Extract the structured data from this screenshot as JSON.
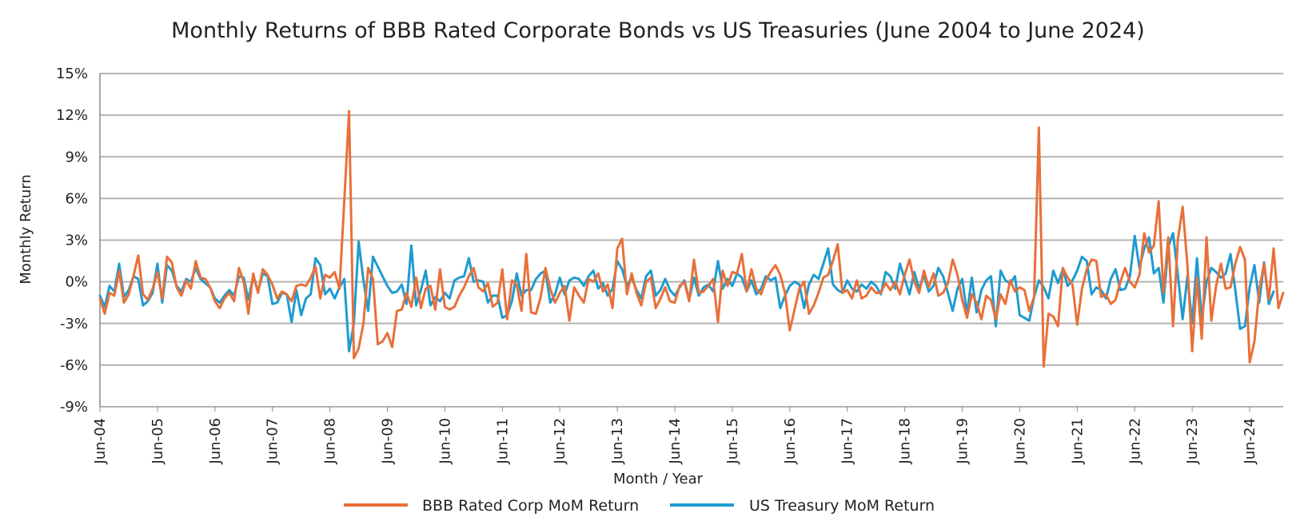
{
  "chart_data": {
    "type": "line",
    "title": "Monthly Returns of BBB Rated Corporate Bonds vs US Treasuries (June 2004 to June 2024)",
    "xlabel": "Month / Year",
    "ylabel": "Monthly Return",
    "ylim": [
      -9,
      15
    ],
    "y_ticks": [
      -9,
      -6,
      -3,
      0,
      3,
      6,
      9,
      12,
      15
    ],
    "y_tick_labels": [
      "-9%",
      "-6%",
      "-3%",
      "0%",
      "3%",
      "6%",
      "9%",
      "12%",
      "15%"
    ],
    "x_tick_labels": [
      "Jun-04",
      "Jun-05",
      "Jun-06",
      "Jun-07",
      "Jun-08",
      "Jun-09",
      "Jun-10",
      "Jun-11",
      "Jun-12",
      "Jun-13",
      "Jun-14",
      "Jun-15",
      "Jun-16",
      "Jun-17",
      "Jun-18",
      "Jun-19",
      "Jun-20",
      "Jun-21",
      "Jun-22",
      "Jun-23",
      "Jun-24"
    ],
    "grid": true,
    "legend_position": "bottom",
    "colors": {
      "bbb": "#e8703a",
      "treasury": "#1f9bd0",
      "grid": "#b3b3b3",
      "axis": "#888888"
    },
    "series": [
      {
        "name": "BBB Rated Corp MoM Return",
        "key": "bbb",
        "values": [
          -1.2,
          -2.3,
          -0.8,
          -1.0,
          0.8,
          -1.5,
          -0.9,
          0.4,
          1.9,
          -0.9,
          -1.3,
          -0.5,
          0.7,
          -1.2,
          1.8,
          1.4,
          -0.4,
          -1.0,
          0.1,
          -0.5,
          1.5,
          0.3,
          0.2,
          -0.4,
          -1.4,
          -1.9,
          -1.2,
          -0.8,
          -1.4,
          1.0,
          0.0,
          -2.3,
          0.6,
          -0.8,
          0.9,
          0.5,
          -0.2,
          -1.2,
          -0.7,
          -0.9,
          -1.4,
          -0.3,
          -0.2,
          -0.3,
          0.3,
          1.1,
          -1.2,
          0.5,
          0.3,
          0.7,
          -0.5,
          5.8,
          12.3,
          -5.5,
          -4.8,
          -3.0,
          1.0,
          0.2,
          -4.5,
          -4.3,
          -3.7,
          -4.7,
          -2.1,
          -2.0,
          -0.8,
          -1.8,
          0.3,
          -1.9,
          -0.5,
          -0.3,
          -2.0,
          0.9,
          -1.8,
          -2.0,
          -1.8,
          -1.0,
          -0.4,
          0.4,
          1.0,
          -0.4,
          -0.7,
          -0.1,
          -1.8,
          -1.5,
          0.9,
          -2.7,
          0.1,
          -0.2,
          -2.1,
          2.0,
          -2.2,
          -2.3,
          -1.1,
          1.0,
          -0.5,
          -1.5,
          -0.8,
          -0.3,
          -2.8,
          -0.4,
          -1.0,
          -1.5,
          0.2,
          0.0,
          0.6,
          -0.7,
          -0.2,
          -1.9,
          2.4,
          3.1,
          -0.9,
          0.6,
          -0.8,
          -1.7,
          0.0,
          0.3,
          -1.9,
          -1.2,
          -0.4,
          -1.4,
          -1.5,
          -0.3,
          0.0,
          -1.4,
          1.6,
          -0.8,
          -0.7,
          -0.3,
          0.2,
          -2.9,
          0.8,
          -0.3,
          0.7,
          0.6,
          2.0,
          -0.7,
          0.9,
          -0.5,
          -0.9,
          0.1,
          0.7,
          1.2,
          0.5,
          -0.8,
          -3.5,
          -2.0,
          -0.5,
          0.0,
          -2.3,
          -1.7,
          -0.8,
          0.3,
          0.5,
          1.5,
          2.7,
          -0.8,
          -0.6,
          -1.2,
          0.1,
          -1.2,
          -1.0,
          -0.4,
          -0.8,
          -0.8,
          -0.1,
          -0.6,
          0.0,
          -0.9,
          0.5,
          1.6,
          0.0,
          -0.8,
          0.8,
          -0.4,
          0.6,
          -1.0,
          -0.8,
          -0.1,
          1.6,
          0.5,
          -1.3,
          -2.6,
          -0.9,
          -1.5,
          -2.7,
          -1.0,
          -1.3,
          -2.7,
          -0.9,
          -1.6,
          0.1,
          -0.7,
          -0.4,
          -0.6,
          -2.1,
          -1.1,
          11.1,
          -6.1,
          -2.3,
          -2.5,
          -3.2,
          1.0,
          0.3,
          -0.2,
          -3.1,
          -0.5,
          0.9,
          1.6,
          1.5,
          -1.1,
          -0.9,
          -1.6,
          -1.3,
          0.0,
          1.0,
          0.0,
          -0.4,
          0.5,
          3.5,
          2.1,
          2.6,
          5.8,
          -0.8,
          3.2,
          -3.2,
          3.0,
          5.4,
          1.2,
          -5.0,
          0.3,
          -4.1,
          3.2,
          -2.8,
          -0.3,
          1.3,
          -0.5,
          -0.4,
          1.3,
          2.5,
          1.6,
          -5.8,
          -4.3,
          -0.6,
          1.3,
          -1.3,
          2.4,
          -1.9,
          -0.8
        ]
      },
      {
        "name": "US Treasury MoM Return",
        "key": "treasury",
        "values": [
          -1.0,
          -1.8,
          -0.3,
          -0.7,
          1.3,
          -1.1,
          -0.6,
          0.4,
          0.2,
          -1.7,
          -1.4,
          -0.8,
          1.3,
          -1.5,
          1.2,
          0.8,
          -0.3,
          -0.7,
          0.2,
          0.0,
          1.0,
          0.2,
          -0.1,
          -0.4,
          -1.2,
          -1.5,
          -1.0,
          -0.6,
          -1.0,
          0.4,
          0.3,
          -1.3,
          0.4,
          -0.7,
          0.6,
          0.4,
          -1.6,
          -1.5,
          -0.8,
          -0.9,
          -2.9,
          -0.6,
          -2.4,
          -1.2,
          -0.9,
          1.7,
          1.2,
          -0.9,
          -0.5,
          -1.2,
          -0.4,
          0.2,
          -5.0,
          -3.0,
          2.9,
          0.1,
          -2.1,
          1.8,
          1.1,
          0.4,
          -0.3,
          -0.8,
          -0.7,
          -0.2,
          -1.6,
          2.6,
          -1.7,
          -0.6,
          0.8,
          -1.7,
          -1.1,
          -1.4,
          -0.8,
          -1.2,
          0.1,
          0.3,
          0.4,
          1.7,
          0.0,
          0.1,
          0.0,
          -1.5,
          -1.0,
          -1.0,
          -2.6,
          -2.4,
          -1.4,
          0.6,
          -1.0,
          -0.6,
          -0.6,
          0.2,
          0.6,
          0.8,
          -1.5,
          -0.9,
          0.3,
          -0.9,
          0.1,
          0.3,
          0.2,
          -0.3,
          0.4,
          0.8,
          -0.5,
          -0.1,
          -1.0,
          -0.5,
          1.5,
          0.9,
          -0.3,
          0.3,
          -0.6,
          -1.2,
          0.4,
          0.8,
          -1.0,
          -0.6,
          0.2,
          -0.6,
          -1.0,
          -0.4,
          0.1,
          -1.3,
          0.3,
          -1.0,
          -0.4,
          -0.2,
          -0.7,
          1.5,
          -0.5,
          0.2,
          -0.3,
          0.6,
          0.3,
          -0.7,
          0.1,
          -0.9,
          -0.5,
          0.4,
          0.1,
          0.3,
          -1.9,
          -1.0,
          -0.3,
          0.0,
          -0.2,
          -1.9,
          -0.2,
          0.5,
          0.2,
          1.3,
          2.4,
          -0.2,
          -0.6,
          -0.8,
          0.1,
          -0.5,
          -0.7,
          -0.2,
          -0.5,
          0.0,
          -0.3,
          -0.9,
          0.7,
          0.4,
          -0.5,
          1.3,
          0.2,
          -0.9,
          0.7,
          -0.5,
          0.5,
          -0.7,
          -0.3,
          1.0,
          0.4,
          -0.8,
          -2.1,
          -0.5,
          0.2,
          -2.3,
          0.3,
          -2.2,
          -0.6,
          0.1,
          0.4,
          -3.2,
          0.8,
          0.1,
          -0.1,
          0.4,
          -2.4,
          -2.6,
          -2.8,
          -1.1,
          0.1,
          -0.4,
          -1.2,
          0.8,
          -0.1,
          0.9,
          -0.3,
          0.1,
          0.8,
          1.8,
          1.5,
          -0.9,
          -0.4,
          -0.6,
          -1.2,
          0.2,
          0.9,
          -0.6,
          -0.5,
          0.4,
          3.3,
          1.0,
          2.4,
          3.2,
          0.6,
          1.0,
          -1.5,
          2.5,
          3.5,
          0.5,
          -2.7,
          0.4,
          -3.0,
          1.7,
          -2.7,
          0.0,
          1.0,
          0.7,
          0.3,
          0.6,
          2.0,
          -0.6,
          -3.4,
          -3.2,
          -0.4,
          1.2,
          -1.5,
          1.4,
          -1.6,
          -0.7
        ]
      }
    ]
  }
}
